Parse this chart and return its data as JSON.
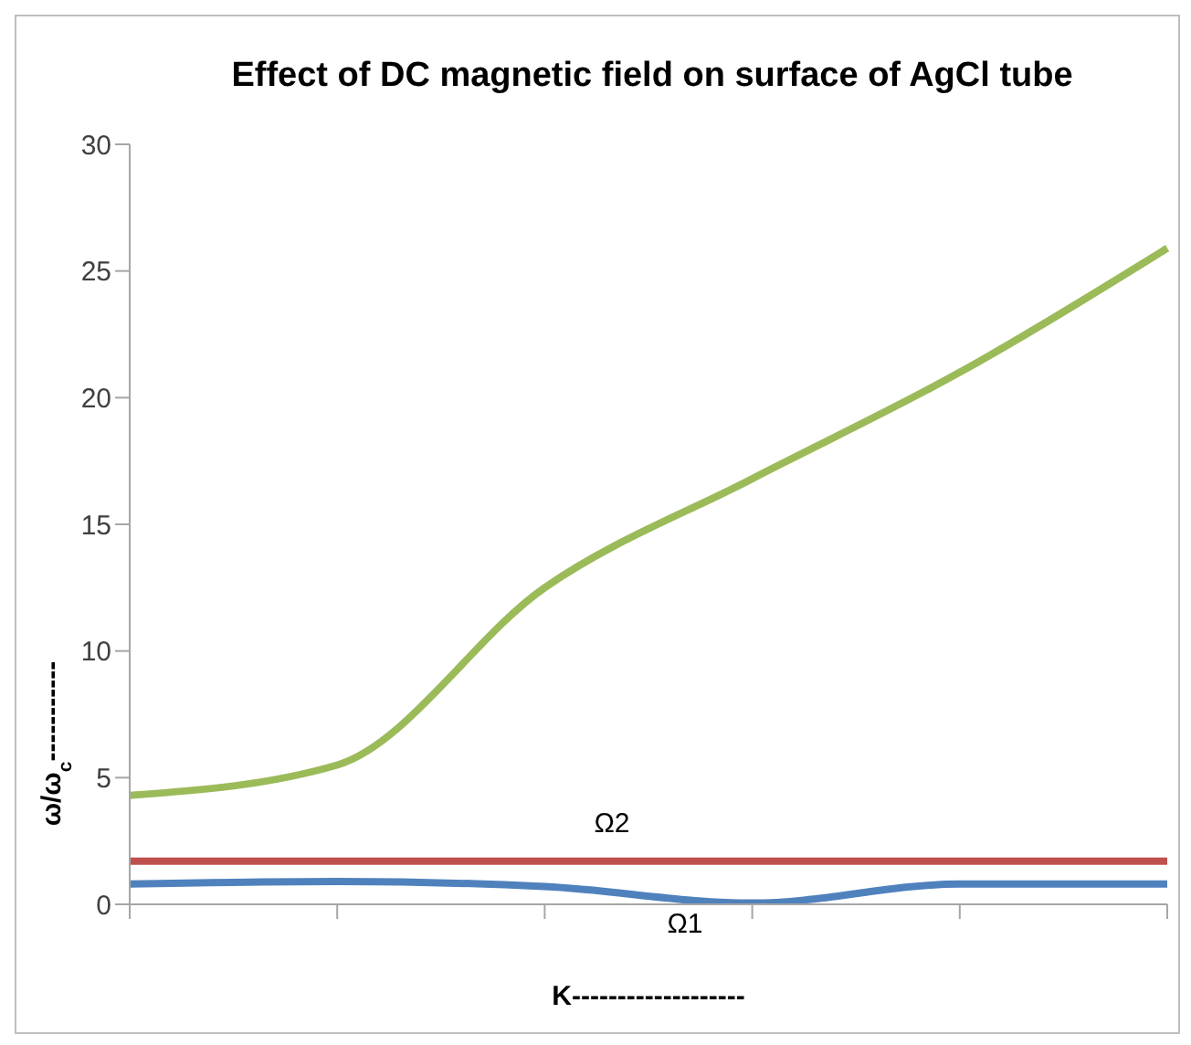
{
  "chart_data": {
    "type": "line",
    "title": "Effect of DC magnetic field on surface of AgCl tube",
    "xlabel": "K-------------------",
    "ylabel": "ω/ω$_{c}$-----------",
    "categories": [
      null,
      null,
      null,
      null,
      null,
      null
    ],
    "series": [
      {
        "color": "#9bbb59",
        "values": [
          4.3,
          5.5,
          12.5,
          16.8,
          21,
          25.9
        ]
      },
      {
        "name": "Ω2",
        "color": "#c0504d",
        "values": [
          1.7,
          1.7,
          1.7,
          1.7,
          1.7,
          1.7
        ]
      },
      {
        "name": "Ω1",
        "color": "#4f81bd",
        "values": [
          0.8,
          0.9,
          0.7,
          0.05,
          0.8,
          0.8
        ]
      }
    ],
    "ylim": [
      0,
      30
    ],
    "yticks": [
      0,
      5,
      10,
      15,
      20,
      25,
      30
    ],
    "grid": false,
    "legend": false,
    "marker": "none",
    "line_style": "solid"
  }
}
